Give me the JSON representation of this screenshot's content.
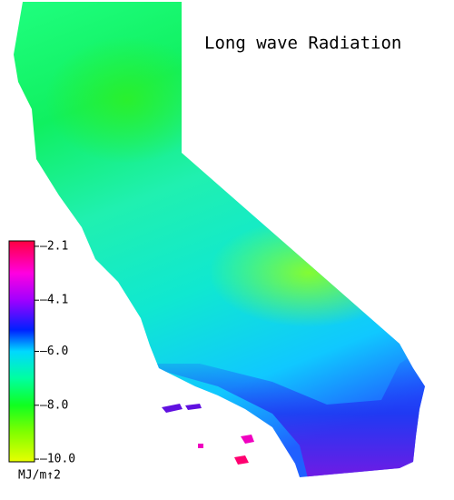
{
  "title": "Long wave Radiation",
  "colorbar": {
    "label": "MJ/m↑2",
    "lim": [
      -10.1,
      -1.9
    ],
    "ticks": [
      {
        "value": -2.1,
        "label": "–2.1"
      },
      {
        "value": -4.1,
        "label": "–4.1"
      },
      {
        "value": -6.0,
        "label": "–6.0"
      },
      {
        "value": -8.0,
        "label": "–8.0"
      },
      {
        "value": -10.0,
        "label": "–10.0"
      }
    ],
    "color_stops": [
      {
        "value": -10.1,
        "color": "#e8ff00"
      },
      {
        "value": -9.0,
        "color": "#80ff00"
      },
      {
        "value": -8.0,
        "color": "#10ff20"
      },
      {
        "value": -7.0,
        "color": "#00ffa0"
      },
      {
        "value": -6.0,
        "color": "#00d8ff"
      },
      {
        "value": -5.2,
        "color": "#0020ff"
      },
      {
        "value": -4.1,
        "color": "#a000ff"
      },
      {
        "value": -3.1,
        "color": "#ff00e0"
      },
      {
        "value": -1.9,
        "color": "#ff0040"
      }
    ]
  }
}
